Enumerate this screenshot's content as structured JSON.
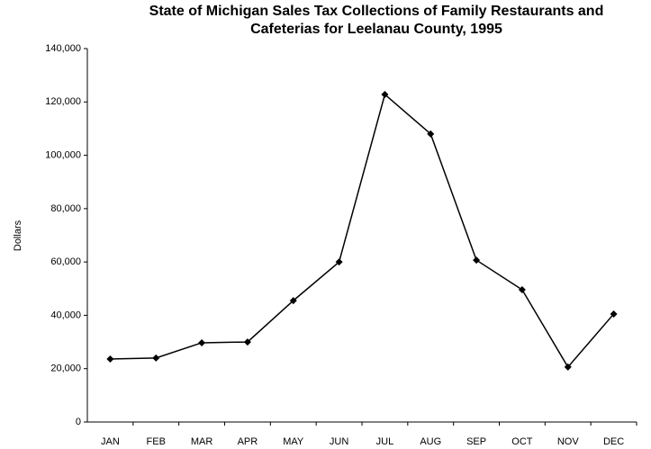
{
  "chart_data": {
    "type": "line",
    "title": [
      "State of Michigan Sales Tax Collections of Family Restaurants and",
      "Cafeterias for Leelanau County, 1995"
    ],
    "y_label": "Dollars",
    "categories": [
      "JAN",
      "FEB",
      "MAR",
      "APR",
      "MAY",
      "JUN",
      "JUL",
      "AUG",
      "SEP",
      "OCT",
      "NOV",
      "DEC"
    ],
    "series": [
      {
        "color": "#000000",
        "values": [
          23600,
          24000,
          29700,
          30000,
          45500,
          60000,
          122800,
          108000,
          60700,
          49600,
          20600,
          40500
        ]
      }
    ],
    "ylim": [
      0,
      140000
    ],
    "yticks": [
      0,
      {
        "value": 20000,
        "label": "20,000"
      },
      {
        "value": 40000,
        "label": "40,000"
      },
      {
        "value": 60000,
        "label": "60,000"
      },
      {
        "value": 80000,
        "label": "80,000"
      },
      {
        "value": 100000,
        "label": "100,000"
      },
      {
        "value": 120000,
        "label": "120,000"
      },
      {
        "value": 140000,
        "label": "140,000"
      }
    ],
    "grid": false
  }
}
